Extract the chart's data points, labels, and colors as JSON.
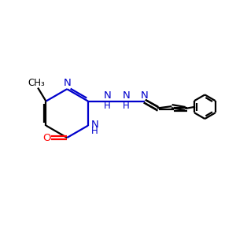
{
  "bg_color": "#ffffff",
  "bond_color": "#000000",
  "N_color": "#0000cc",
  "O_color": "#ff0000",
  "line_width": 1.6,
  "font_size": 9.5,
  "fig_size": [
    3.0,
    3.0
  ],
  "dpi": 100,
  "xlim": [
    0,
    10
  ],
  "ylim": [
    0,
    10
  ]
}
